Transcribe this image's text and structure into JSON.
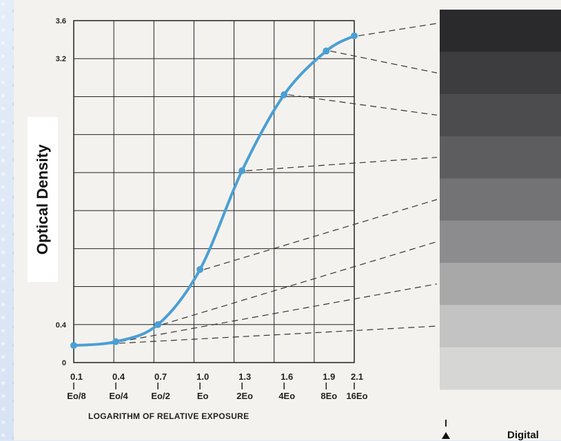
{
  "chart_data": {
    "type": "line",
    "ylabel": "Optical Density",
    "xlabel": "LOGARITHM OF RELATIVE EXPOSURE",
    "xlim": [
      0.1,
      2.1
    ],
    "ylim": [
      0,
      3.6
    ],
    "grid": true,
    "y_ticks": [
      "0",
      "0.4",
      "",
      "",
      "",
      "",
      "",
      "",
      "3.2",
      "3.6"
    ],
    "x_ticks": [
      {
        "log": "0.1",
        "exp": "Eo/8",
        "value": 0.1
      },
      {
        "log": "0.4",
        "exp": "Eo/4",
        "value": 0.4
      },
      {
        "log": "0.7",
        "exp": "Eo/2",
        "value": 0.7
      },
      {
        "log": "1.0",
        "exp": "Eo",
        "value": 1.0
      },
      {
        "log": "1.3",
        "exp": "2Eo",
        "value": 1.3
      },
      {
        "log": "1.6",
        "exp": "4Eo",
        "value": 1.6
      },
      {
        "log": "1.9",
        "exp": "8Eo",
        "value": 1.9
      },
      {
        "log": "2.1",
        "exp": "16Eo",
        "value": 2.1
      }
    ],
    "series": [
      {
        "color": "#4a9fd4",
        "x": [
          0.1,
          0.4,
          0.7,
          1.0,
          1.3,
          1.6,
          1.9,
          2.1
        ],
        "y": [
          0.18,
          0.22,
          0.4,
          0.98,
          2.02,
          2.82,
          3.28,
          3.44
        ]
      }
    ],
    "grayscale_steps": [
      "#2a2a2c",
      "#3d3d40",
      "#4c4c4f",
      "#5d5d60",
      "#737376",
      "#8c8c8e",
      "#a8a8a9",
      "#c3c3c3",
      "#d6d6d5"
    ]
  },
  "annotation": {
    "digital": "Digital"
  }
}
